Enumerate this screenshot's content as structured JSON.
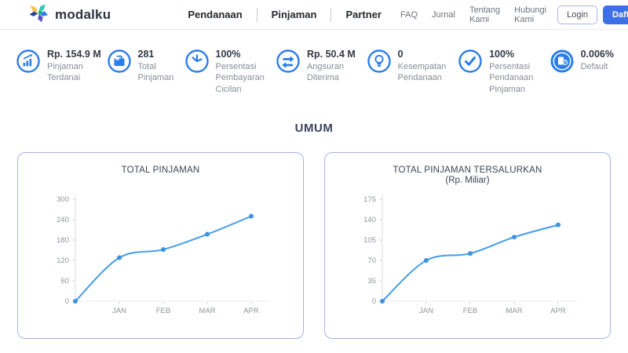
{
  "header": {
    "logo_text": "modalku",
    "nav_primary": [
      {
        "label": "Pendanaan"
      },
      {
        "label": "Pinjaman"
      },
      {
        "label": "Partner"
      }
    ],
    "nav_secondary": [
      {
        "label": "FAQ"
      },
      {
        "label": "Jurnal"
      },
      {
        "label": "Tentang Kami"
      },
      {
        "label": "Hubungi Kami"
      }
    ],
    "login_label": "Login",
    "daftar_label": "Daftar"
  },
  "stats": [
    {
      "icon": "growth-chart-icon",
      "value": "Rp. 154.9 M",
      "label": "Pinjaman Terdanai"
    },
    {
      "icon": "briefcase-icon",
      "value": "281",
      "label": "Total Pinjaman"
    },
    {
      "icon": "clock-icon",
      "value": "100%",
      "label": "Persentasi Pembayaran Cicilan"
    },
    {
      "icon": "transfer-arrows-icon",
      "value": "Rp. 50.4 M",
      "label": "Angsuran Diterima"
    },
    {
      "icon": "lightbulb-icon",
      "value": "0",
      "label": "Kesempatan Pendanaan"
    },
    {
      "icon": "check-circle-icon",
      "value": "100%",
      "label": "Persentasi Pendanaan Pinjaman"
    },
    {
      "icon": "default-rate-icon",
      "value": "0.006%",
      "label": "Default"
    }
  ],
  "section_title": "UMUM",
  "chart_data": [
    {
      "type": "line",
      "title": "TOTAL PINJAMAN",
      "subtitle": "",
      "x": [
        "",
        "JAN",
        "FEB",
        "MAR",
        "APR"
      ],
      "values": [
        0,
        128,
        152,
        197,
        250
      ],
      "yticks": [
        0,
        60,
        120,
        180,
        240,
        300
      ],
      "ylim": [
        0,
        300
      ],
      "grid": false,
      "legend": "none",
      "line_color": "#4da0e8",
      "marker_color": "#3d92e0"
    },
    {
      "type": "line",
      "title": "TOTAL PINJAMAN TERSALURKAN",
      "subtitle": "(Rp. Miliar)",
      "x": [
        "",
        "JAN",
        "FEB",
        "MAR",
        "APR"
      ],
      "values": [
        0,
        70,
        82,
        110,
        131
      ],
      "yticks": [
        0,
        35,
        70,
        105,
        140,
        175
      ],
      "ylim": [
        0,
        175
      ],
      "grid": false,
      "legend": "none",
      "line_color": "#4da0e8",
      "marker_color": "#3d92e0"
    }
  ],
  "colors": {
    "accent_blue": "#2b7de9",
    "daftar_bg": "#3d6fe8",
    "card_border": "#a9b4e4",
    "chart_line": "#4da0e8",
    "axis_gray": "#d8dbe0"
  }
}
